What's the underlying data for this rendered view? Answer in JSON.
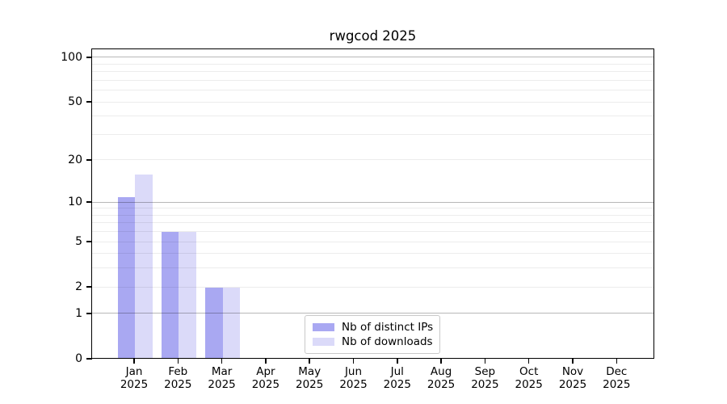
{
  "chart_data": {
    "type": "bar",
    "title": "rwgcod 2025",
    "year_label": "2025",
    "categories": [
      "Jan",
      "Feb",
      "Mar",
      "Apr",
      "May",
      "Jun",
      "Jul",
      "Aug",
      "Sep",
      "Oct",
      "Nov",
      "Dec"
    ],
    "series": [
      {
        "name": "Nb of distinct IPs",
        "color": "#a9a8f2",
        "values": [
          11,
          6,
          2,
          0,
          0,
          0,
          0,
          0,
          0,
          0,
          0,
          0
        ]
      },
      {
        "name": "Nb of downloads",
        "color": "#dbdaf9",
        "values": [
          16,
          6,
          2,
          0,
          0,
          0,
          0,
          0,
          0,
          0,
          0,
          0
        ]
      }
    ],
    "xlabel": "",
    "ylabel": "",
    "y_scale": "log1p",
    "y_tick_labels": [
      0,
      1,
      2,
      5,
      10,
      20,
      50,
      100
    ],
    "y_minor_gridlines": [
      2,
      3,
      4,
      5,
      6,
      7,
      8,
      9,
      20,
      30,
      40,
      50,
      60,
      70,
      80,
      90
    ],
    "y_major_gridlines": [
      1,
      10,
      100
    ],
    "ylim": [
      0,
      115
    ],
    "grid": true,
    "legend_position": "bottom-center"
  }
}
